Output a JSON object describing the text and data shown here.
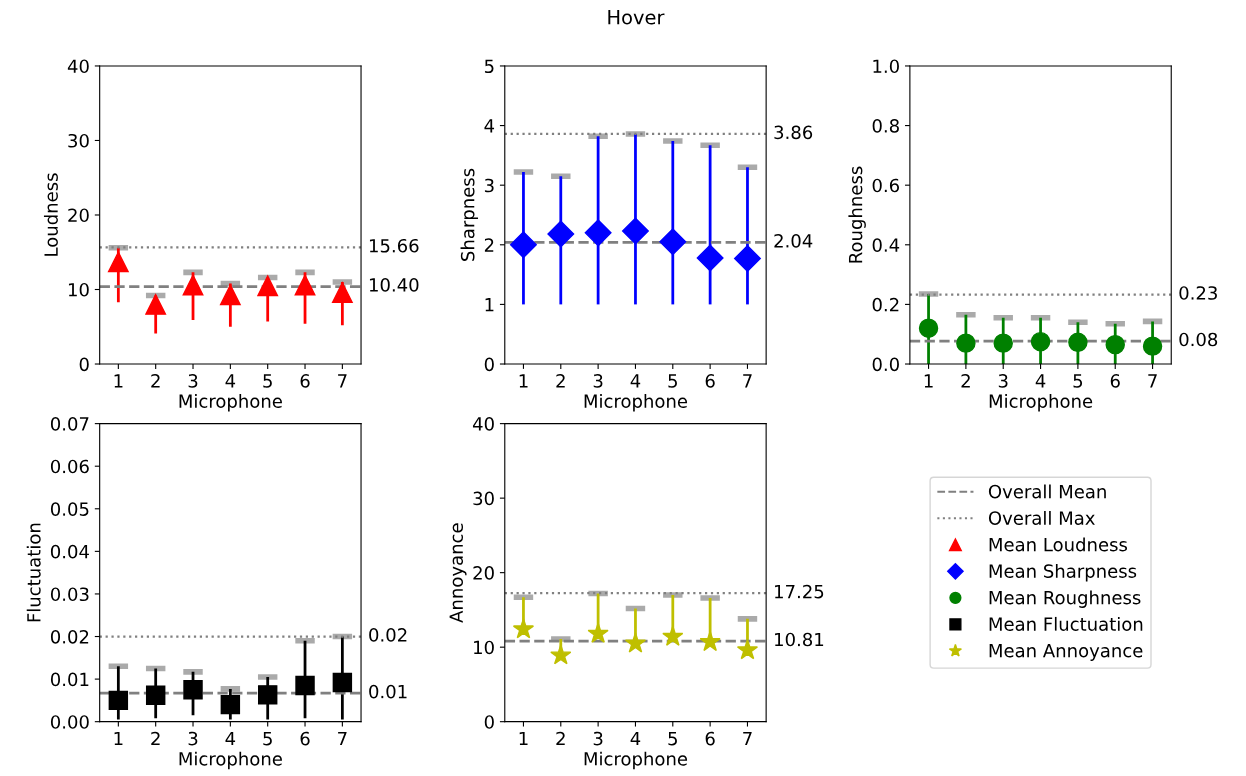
{
  "chart_data": [
    {
      "type": "scatter",
      "xlabel": "Microphone",
      "ylabel": "Loudness",
      "categories": [
        "1",
        "2",
        "3",
        "4",
        "5",
        "6",
        "7"
      ],
      "ylim": [
        0,
        40
      ],
      "yticks": [
        0,
        10,
        20,
        30,
        40
      ],
      "legend": "right",
      "annotations": [
        "Overall Mean",
        "Overall Max"
      ],
      "series": [
        {
          "name": "Mean Loudness",
          "color": "#ff0000",
          "marker": "triangle",
          "values": [
            13.7,
            8.0,
            10.6,
            9.3,
            10.5,
            10.6,
            9.6
          ],
          "errors": [
            [
              8.3,
              15.6
            ],
            [
              4.1,
              9.2
            ],
            [
              5.9,
              12.3
            ],
            [
              5.0,
              10.8
            ],
            [
              5.7,
              11.6
            ],
            [
              5.4,
              12.3
            ],
            [
              5.2,
              11.0
            ]
          ]
        }
      ],
      "ref_lines": [
        {
          "axis": "y",
          "value": 10.4,
          "label": "10.40",
          "color": "#808080",
          "line_style": "dashed"
        },
        {
          "axis": "y",
          "value": 15.66,
          "label": "15.66",
          "color": "#808080",
          "line_style": "dotted"
        }
      ]
    },
    {
      "type": "scatter",
      "title": "Hover",
      "xlabel": "Microphone",
      "ylabel": "Sharpness",
      "categories": [
        "1",
        "2",
        "3",
        "4",
        "5",
        "6",
        "7"
      ],
      "ylim": [
        0,
        5
      ],
      "yticks": [
        0,
        1,
        2,
        3,
        4,
        5
      ],
      "legend": "right",
      "series": [
        {
          "name": "Mean Sharpness",
          "color": "#0000ff",
          "marker": "diamond",
          "values": [
            2.0,
            2.18,
            2.2,
            2.23,
            2.05,
            1.78,
            1.77
          ],
          "errors": [
            [
              1.0,
              3.22
            ],
            [
              1.0,
              3.15
            ],
            [
              1.0,
              3.82
            ],
            [
              1.0,
              3.86
            ],
            [
              1.0,
              3.74
            ],
            [
              1.0,
              3.67
            ],
            [
              1.0,
              3.3
            ]
          ]
        }
      ],
      "ref_lines": [
        {
          "axis": "y",
          "value": 2.04,
          "label": "2.04",
          "color": "#808080",
          "line_style": "dashed"
        },
        {
          "axis": "y",
          "value": 3.86,
          "label": "3.86",
          "color": "#808080",
          "line_style": "dotted"
        }
      ]
    },
    {
      "type": "scatter",
      "xlabel": "Microphone",
      "ylabel": "Roughness",
      "categories": [
        "1",
        "2",
        "3",
        "4",
        "5",
        "6",
        "7"
      ],
      "ylim": [
        0,
        1.0
      ],
      "yticks": [
        {
          "value": 0,
          "label": "0.0"
        },
        0.2,
        0.4,
        0.6,
        0.8,
        {
          "value": 1,
          "label": "1.0"
        }
      ],
      "legend": "right",
      "series": [
        {
          "name": "Mean Roughness",
          "color": "#008000",
          "marker": "circle",
          "values": [
            0.12,
            0.07,
            0.07,
            0.075,
            0.073,
            0.065,
            0.06
          ],
          "errors": [
            [
              0.0,
              0.235
            ],
            [
              0.0,
              0.165
            ],
            [
              0.0,
              0.155
            ],
            [
              0.0,
              0.155
            ],
            [
              0.0,
              0.14
            ],
            [
              0.0,
              0.135
            ],
            [
              0.0,
              0.143
            ]
          ]
        }
      ],
      "ref_lines": [
        {
          "axis": "y",
          "value": 0.077,
          "label": "0.08",
          "color": "#808080",
          "line_style": "dashed"
        },
        {
          "axis": "y",
          "value": 0.233,
          "label": "0.23",
          "color": "#808080",
          "line_style": "dotted"
        }
      ]
    },
    {
      "type": "scatter",
      "xlabel": "Microphone",
      "ylabel": "Fluctuation",
      "categories": [
        "1",
        "2",
        "3",
        "4",
        "5",
        "6",
        "7"
      ],
      "ylim": [
        0,
        0.07
      ],
      "yticks": [
        {
          "value": 0,
          "label": "0.00"
        },
        {
          "value": 0.01,
          "label": "0.01"
        },
        {
          "value": 0.02,
          "label": "0.02"
        },
        {
          "value": 0.03,
          "label": "0.03"
        },
        {
          "value": 0.04,
          "label": "0.04"
        },
        {
          "value": 0.05,
          "label": "0.05"
        },
        {
          "value": 0.06,
          "label": "0.06"
        },
        {
          "value": 0.07,
          "label": "0.07"
        }
      ],
      "legend": "right",
      "series": [
        {
          "name": "Mean Fluctuation",
          "color": "#000000",
          "marker": "square",
          "values": [
            0.005,
            0.0062,
            0.0075,
            0.004,
            0.0063,
            0.0085,
            0.0092
          ],
          "errors": [
            [
              0.0005,
              0.013
            ],
            [
              0.0008,
              0.0125
            ],
            [
              0.0015,
              0.0117
            ],
            [
              0.0005,
              0.0077
            ],
            [
              0.0005,
              0.0105
            ],
            [
              0.0008,
              0.019
            ],
            [
              0.0005,
              0.02
            ]
          ]
        }
      ],
      "ref_lines": [
        {
          "axis": "y",
          "value": 0.0067,
          "label": "0.01",
          "color": "#808080",
          "line_style": "dashed"
        },
        {
          "axis": "y",
          "value": 0.02,
          "label": "0.02",
          "color": "#808080",
          "line_style": "dotted"
        }
      ]
    },
    {
      "type": "scatter",
      "xlabel": "Microphone",
      "ylabel": "Annoyance",
      "categories": [
        "1",
        "2",
        "3",
        "4",
        "5",
        "6",
        "7"
      ],
      "ylim": [
        0,
        40
      ],
      "yticks": [
        0,
        10,
        20,
        30,
        40
      ],
      "legend": "right",
      "series": [
        {
          "name": "Mean Annoyance",
          "color": "#bfbf00",
          "marker": "star",
          "values": [
            12.4,
            8.9,
            11.8,
            10.5,
            11.4,
            10.7,
            9.6
          ],
          "errors": [
            [
              12.4,
              16.7
            ],
            [
              8.9,
              11.1
            ],
            [
              11.8,
              17.2
            ],
            [
              10.5,
              15.2
            ],
            [
              11.4,
              17.0
            ],
            [
              10.7,
              16.6
            ],
            [
              9.6,
              13.8
            ]
          ]
        }
      ],
      "ref_lines": [
        {
          "axis": "y",
          "value": 10.81,
          "label": "10.81",
          "color": "#808080",
          "line_style": "dashed"
        },
        {
          "axis": "y",
          "value": 17.25,
          "label": "17.25",
          "color": "#808080",
          "line_style": "dotted"
        }
      ]
    }
  ]
}
